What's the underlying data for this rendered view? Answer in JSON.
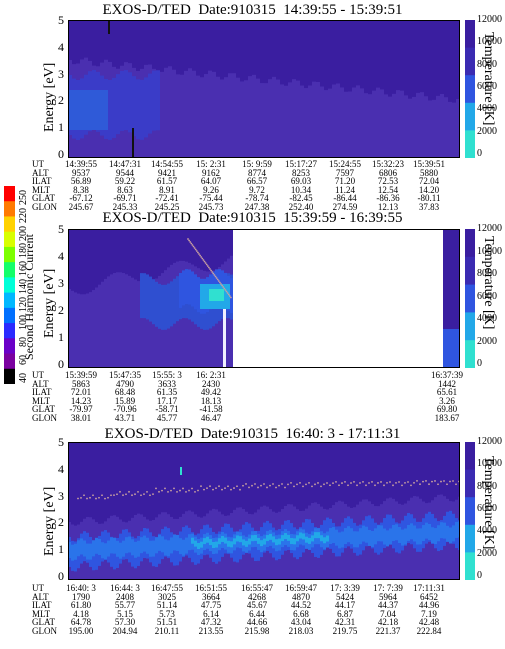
{
  "colors": {
    "background": "#3a1ea0",
    "low": "#4a2fb0",
    "mid": "#2f55e0",
    "high": "#22a8e8",
    "peak": "#30e0d0",
    "temperature_dots": "#c9a0a0"
  },
  "panels": [
    {
      "title": "EXOS-D/TED  Date:910315  14:39:55 - 15:39:51",
      "ylabel": "Energy [eV]",
      "yticks": [
        "5",
        "4",
        "3",
        "2",
        "1",
        "0"
      ],
      "rlabel": "Temperature [K]",
      "rticks": [
        "12000",
        "10000",
        "8000",
        "6000",
        "4000",
        "2000",
        "0"
      ],
      "meta_labels": [
        "UT",
        "ALT",
        "ILAT",
        "MLT",
        "GLAT",
        "GLON"
      ],
      "meta_values": [
        [
          "14:39:55",
          "14:47:31",
          "14:54:55",
          "15: 2:31",
          "15: 9:59",
          "15:17:27",
          "15:24:55",
          "15:32:23",
          "15:39:51"
        ],
        [
          "9537",
          "9544",
          "9421",
          "9162",
          "8774",
          "8253",
          "7597",
          "6806",
          "5880"
        ],
        [
          "56.89",
          "59.22",
          "61.57",
          "64.07",
          "66.57",
          "69.03",
          "71.20",
          "72.53",
          "72.04"
        ],
        [
          "8.38",
          "8.63",
          "8.91",
          "9.26",
          "9.72",
          "10.34",
          "11.24",
          "12.54",
          "14.20"
        ],
        [
          "-67.12",
          "-69.71",
          "-72.41",
          "-75.44",
          "-78.74",
          "-82.45",
          "-86.44",
          "-86.36",
          "-80.11"
        ],
        [
          "245.67",
          "245.33",
          "245.25",
          "245.73",
          "247.38",
          "252.40",
          "274.59",
          "12.13",
          "37.83"
        ]
      ]
    },
    {
      "title": "EXOS-D/TED  Date:910315  15:39:59 - 16:39:55",
      "ylabel": "Energy [eV]",
      "yticks": [
        "5",
        "4",
        "3",
        "2",
        "1",
        "0"
      ],
      "rlabel": "Temperature [K]",
      "rticks": [
        "12000",
        "10000",
        "8000",
        "6000",
        "4000",
        "2000",
        "0"
      ],
      "side_label": "Second Harmonic Current",
      "meta_labels": [
        "UT",
        "ALT",
        "ILAT",
        "MLT",
        "GLAT",
        "GLON"
      ],
      "meta_values": [
        [
          "15:39:59",
          "15:47:35",
          "15:55: 3",
          "16: 2:31",
          "",
          "",
          "",
          "",
          "16:37:39"
        ],
        [
          "5863",
          "4790",
          "3633",
          "2430",
          "",
          "",
          "",
          "",
          "1442"
        ],
        [
          "72.01",
          "68.48",
          "61.35",
          "49.42",
          "",
          "",
          "",
          "",
          "65.61"
        ],
        [
          "14.23",
          "15.89",
          "17.17",
          "18.13",
          "",
          "",
          "",
          "",
          "3.26"
        ],
        [
          "-79.97",
          "-70.96",
          "-58.71",
          "-41.58",
          "",
          "",
          "",
          "",
          "69.80"
        ],
        [
          "38.01",
          "43.71",
          "45.77",
          "46.47",
          "",
          "",
          "",
          "",
          "183.67"
        ]
      ]
    },
    {
      "title": "EXOS-D/TED  Date:910315  16:40: 3 - 17:11:31",
      "ylabel": "Energy [eV]",
      "yticks": [
        "5",
        "4",
        "3",
        "2",
        "1",
        "0"
      ],
      "rlabel": "Temperature [K]",
      "rticks": [
        "12000",
        "10000",
        "8000",
        "6000",
        "4000",
        "2000",
        "0"
      ],
      "meta_labels": [
        "UT",
        "ALT",
        "ILAT",
        "MLT",
        "GLAT",
        "GLON"
      ],
      "meta_values": [
        [
          "16:40: 3",
          "16:44: 3",
          "16:47:55",
          "16:51:55",
          "16:55:47",
          "16:59:47",
          "17: 3:39",
          "17: 7:39",
          "17:11:31"
        ],
        [
          "1790",
          "2408",
          "3025",
          "3664",
          "4268",
          "4870",
          "5424",
          "5964",
          "6452"
        ],
        [
          "61.80",
          "55.77",
          "51.14",
          "47.75",
          "45.67",
          "44.52",
          "44.17",
          "44.37",
          "44.96"
        ],
        [
          "4.18",
          "5.15",
          "5.73",
          "6.14",
          "6.44",
          "6.68",
          "6.87",
          "7.04",
          "7.19"
        ],
        [
          "64.78",
          "57.30",
          "51.51",
          "47.32",
          "44.66",
          "43.04",
          "42.31",
          "42.18",
          "42.48"
        ],
        [
          "195.00",
          "204.94",
          "210.11",
          "213.55",
          "215.98",
          "218.03",
          "219.75",
          "221.37",
          "222.84"
        ]
      ]
    }
  ],
  "colorbar": {
    "label": "Second Harmonic Current",
    "ticks": [
      "250",
      "220",
      "200",
      "180",
      "160",
      "140",
      "120",
      "100",
      "80",
      "60",
      "40"
    ]
  },
  "chart_data": [
    {
      "type": "heatmap",
      "title": "EXOS-D/TED  Date:910315  14:39:55 - 15:39:51",
      "ylabel": "Energy [eV]",
      "ylim": [
        0,
        5
      ],
      "y2label": "Temperature [K]",
      "y2lim": [
        0,
        12000
      ],
      "x": [
        "14:39:55",
        "14:47:31",
        "14:54:55",
        "15: 2:31",
        "15: 9:59",
        "15:17:27",
        "15:24:55",
        "15:32:23",
        "15:39:51"
      ]
    },
    {
      "type": "heatmap",
      "title": "EXOS-D/TED  Date:910315  15:39:59 - 16:39:55",
      "ylabel": "Energy [eV]",
      "ylim": [
        0,
        5
      ],
      "y2label": "Temperature [K]",
      "y2lim": [
        0,
        12000
      ],
      "x": [
        "15:39:59",
        "15:47:35",
        "15:55: 3",
        "16: 2:31",
        "16:37:39"
      ]
    },
    {
      "type": "heatmap",
      "title": "EXOS-D/TED  Date:910315  16:40: 3 - 17:11:31",
      "ylabel": "Energy [eV]",
      "ylim": [
        0,
        5
      ],
      "y2label": "Temperature [K]",
      "y2lim": [
        0,
        12000
      ],
      "x": [
        "16:40: 3",
        "16:44: 3",
        "16:47:55",
        "16:51:55",
        "16:55:47",
        "16:59:47",
        "17: 3:39",
        "17: 7:39",
        "17:11:31"
      ],
      "series": [
        {
          "name": "",
          "values": [
            7200,
            7500,
            7800,
            8000,
            8200,
            8300,
            8400,
            8400,
            8500
          ]
        }
      ]
    }
  ]
}
